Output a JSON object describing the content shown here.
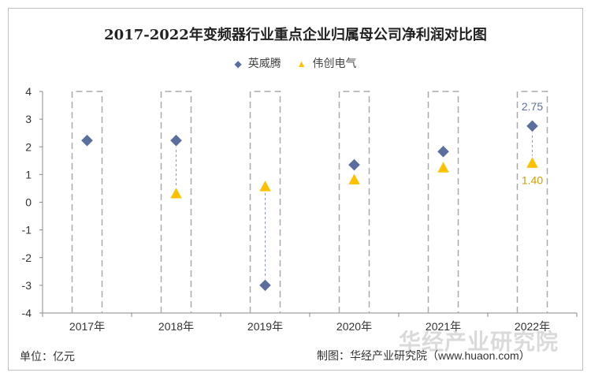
{
  "chart_data": {
    "type": "scatter",
    "title": "2017-2022年变频器行业重点企业归属母公司净利润对比图",
    "categories": [
      "2017年",
      "2018年",
      "2019年",
      "2020年",
      "2021年",
      "2022年"
    ],
    "ylim": [
      -4,
      4
    ],
    "yticks": [
      4,
      3,
      2,
      1,
      0,
      -1,
      -2,
      -3,
      -4
    ],
    "legend_position": "top",
    "series": [
      {
        "name": "英威腾",
        "marker": "diamond",
        "color": "#5b6f9e",
        "values": [
          2.23,
          2.23,
          -3.0,
          1.35,
          1.83,
          2.75
        ]
      },
      {
        "name": "伟创电气",
        "marker": "triangle",
        "color": "#ffc000",
        "values": [
          null,
          0.3,
          0.55,
          0.8,
          1.23,
          1.4
        ]
      }
    ],
    "data_labels": [
      {
        "series": 0,
        "index": 5,
        "text": "2.75"
      },
      {
        "series": 1,
        "index": 5,
        "text": "1.40"
      }
    ]
  },
  "legend_markers": {
    "s0": "◆",
    "s1": "▲"
  },
  "footer": {
    "unit": "单位：亿元",
    "source": "制图：华经产业研究院（www.huaon.com）",
    "watermark": "华经产业研究院"
  }
}
